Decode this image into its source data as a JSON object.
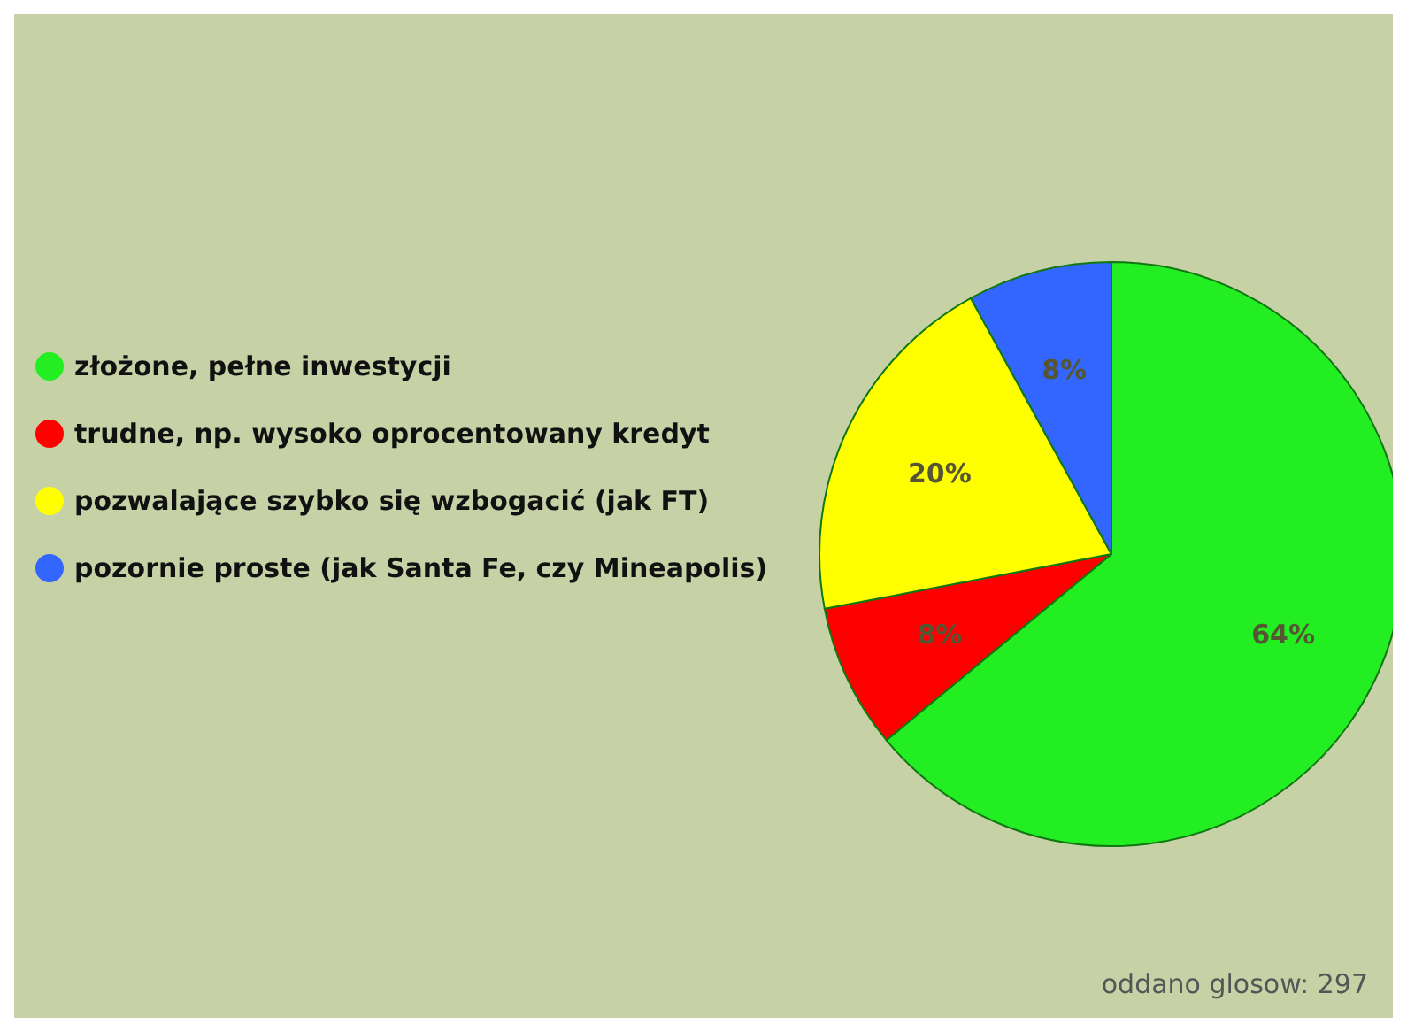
{
  "chart_data": {
    "type": "pie",
    "categories": [
      "złożone, pełne inwestycji",
      "trudne, np. wysoko oprocentowany kredyt",
      "pozwalające szybko się wzbogacić (jak FT)",
      "pozornie proste (jak Santa Fe, czy Mineapolis)"
    ],
    "values": [
      64,
      8,
      20,
      8
    ],
    "colors": [
      "#22ee22",
      "#ff0000",
      "#ffff00",
      "#3366ff"
    ],
    "value_labels": [
      "64%",
      "8%",
      "20%",
      "8%"
    ],
    "legend": "left",
    "annotations": [
      "oddano glosow: 297"
    ]
  }
}
